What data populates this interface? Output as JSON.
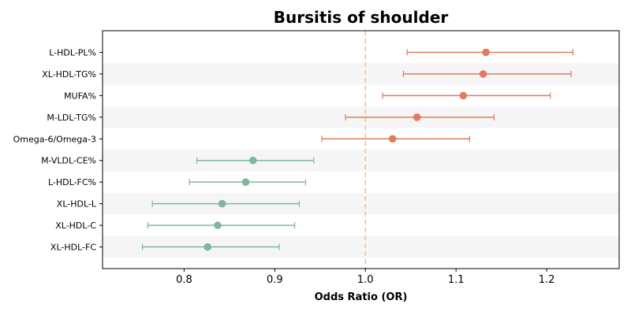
{
  "chart_data": {
    "type": "forest",
    "title": "Bursitis of shoulder",
    "xlabel": "Odds Ratio (OR)",
    "xlim": [
      0.71,
      1.28
    ],
    "xticks": [
      0.8,
      0.9,
      1.0,
      1.1,
      1.2
    ],
    "xtick_labels": [
      "0.8",
      "0.9",
      "1.0",
      "1.1",
      "1.2"
    ],
    "reference_line": 1.0,
    "colors": {
      "positive": "#e07b5f",
      "negative": "#7fb79b",
      "reference": "#f3c27d",
      "band": "#f5f5f5"
    },
    "rows": [
      {
        "label": "L-HDL-PL%",
        "or": 1.133,
        "ci_low": 1.046,
        "ci_high": 1.229
      },
      {
        "label": "XL-HDL-TG%",
        "or": 1.13,
        "ci_low": 1.042,
        "ci_high": 1.227
      },
      {
        "label": "MUFA%",
        "or": 1.108,
        "ci_low": 1.019,
        "ci_high": 1.204
      },
      {
        "label": "M-LDL-TG%",
        "or": 1.057,
        "ci_low": 0.978,
        "ci_high": 1.142
      },
      {
        "label": "Omega-6/Omega-3",
        "or": 1.03,
        "ci_low": 0.952,
        "ci_high": 1.115
      },
      {
        "label": "M-VLDL-CE%",
        "or": 0.876,
        "ci_low": 0.814,
        "ci_high": 0.943
      },
      {
        "label": "L-HDL-FC%",
        "or": 0.868,
        "ci_low": 0.806,
        "ci_high": 0.934
      },
      {
        "label": "XL-HDL-L",
        "or": 0.842,
        "ci_low": 0.765,
        "ci_high": 0.927
      },
      {
        "label": "XL-HDL-C",
        "or": 0.837,
        "ci_low": 0.76,
        "ci_high": 0.922
      },
      {
        "label": "XL-HDL-FC",
        "or": 0.826,
        "ci_low": 0.754,
        "ci_high": 0.905
      }
    ]
  }
}
